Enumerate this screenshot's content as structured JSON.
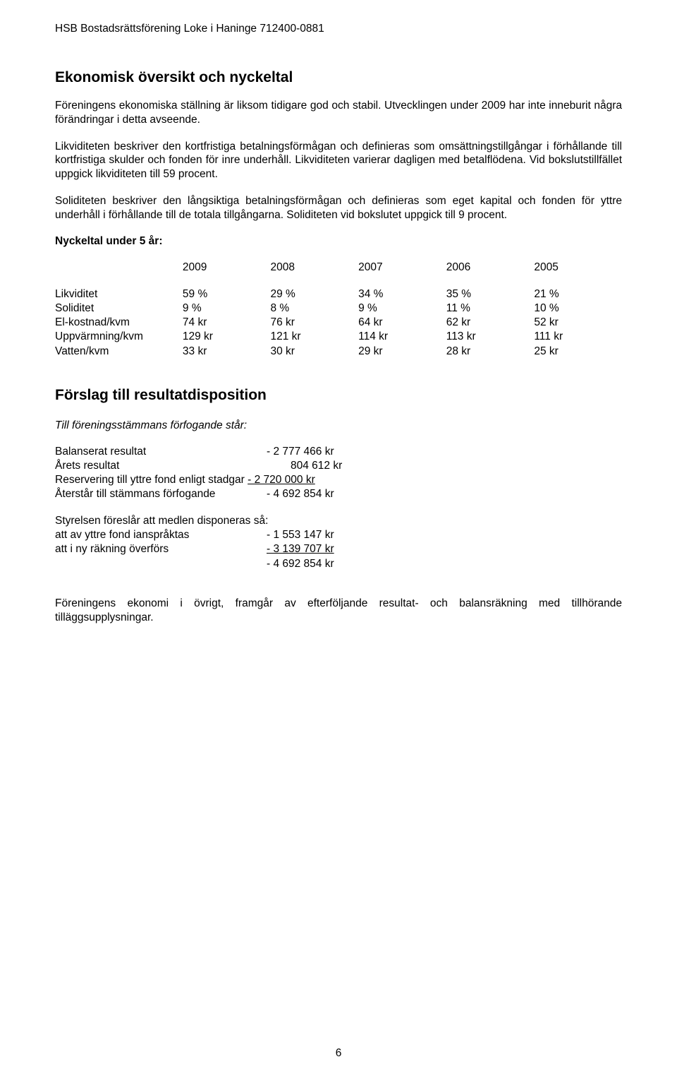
{
  "header": "HSB Bostadsrättsförening Loke i Haninge 712400-0881",
  "section1": {
    "title": "Ekonomisk översikt och nyckeltal",
    "p1": "Föreningens ekonomiska ställning är liksom tidigare god och stabil. Utvecklingen under 2009 har inte inneburit några förändringar i detta avseende.",
    "p2": "Likviditeten beskriver den kortfristiga betalningsförmågan och definieras som omsättningstillgångar i förhållande till kortfristiga skulder och fonden för inre underhåll. Likviditeten varierar dagligen med betalflödena. Vid bokslutstillfället uppgick likviditeten till 59 procent.",
    "p3": "Soliditeten beskriver den långsiktiga betalningsförmågan och definieras som eget kapital och fonden för yttre underhåll i förhållande till de totala tillgångarna. Soliditeten vid bokslutet uppgick till 9 procent.",
    "nyckel_label": "Nyckeltal under 5 år:"
  },
  "table": {
    "years": [
      "2009",
      "2008",
      "2007",
      "2006",
      "2005"
    ],
    "rows": [
      {
        "label": "Likviditet",
        "vals": [
          "59 %",
          "29 %",
          "34 %",
          "35 %",
          "21 %"
        ]
      },
      {
        "label": "Soliditet",
        "vals": [
          "9 %",
          "8 %",
          "9 %",
          "11 %",
          "10 %"
        ]
      },
      {
        "label": "El-kostnad/kvm",
        "vals": [
          "74 kr",
          "76 kr",
          "64 kr",
          "62 kr",
          "52 kr"
        ]
      },
      {
        "label": "Uppvärmning/kvm",
        "vals": [
          "129 kr",
          "121 kr",
          "114 kr",
          "113 kr",
          "111 kr"
        ]
      },
      {
        "label": "Vatten/kvm",
        "vals": [
          "33 kr",
          "30 kr",
          "29 kr",
          "28 kr",
          "25 kr"
        ]
      }
    ]
  },
  "section2": {
    "title": "Förslag till resultatdisposition",
    "intro": "Till föreningsstämmans förfogande står:",
    "block1": [
      {
        "label": "Balanserat resultat",
        "value": "- 2 777 466 kr",
        "underline": false
      },
      {
        "label": "Årets resultat",
        "value": "804 612 kr",
        "underline": false,
        "indent": true
      },
      {
        "label": "Reservering till yttre fond enligt stadgar",
        "value": "- 2 720 000 kr",
        "underline": true,
        "inline": true
      },
      {
        "label": "Återstår till stämmans förfogande",
        "value": "- 4 692 854 kr",
        "underline": false
      }
    ],
    "block2_intro": "Styrelsen föreslår att medlen disponeras så:",
    "block2": [
      {
        "label": "att av yttre fond ianspråktas",
        "value": "- 1 553 147 kr",
        "underline": false
      },
      {
        "label": "att i ny räkning överförs",
        "value": "- 3 139 707 kr",
        "underline": true
      },
      {
        "label": "",
        "value": "- 4 692 854 kr",
        "underline": false
      }
    ],
    "closing": "Föreningens ekonomi i övrigt, framgår av efterföljande resultat- och balansräkning med tillhörande tilläggsupplysningar."
  },
  "page_number": "6"
}
